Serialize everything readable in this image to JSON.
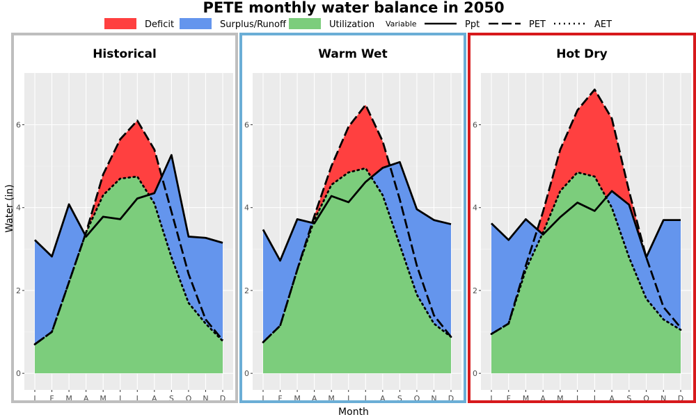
{
  "chart_data": {
    "type": "area",
    "title": "PETE monthly water balance in 2050",
    "xlabel": "Month",
    "ylabel": "Water (in)",
    "ylim": [
      -0.4,
      7.25
    ],
    "y_ticks": [
      0,
      2,
      4,
      6
    ],
    "categories": [
      "J",
      "F",
      "M",
      "A",
      "M",
      "J",
      "J",
      "A",
      "S",
      "O",
      "N",
      "D"
    ],
    "grid": true,
    "legend_position": "top",
    "legend": {
      "fill_items": [
        {
          "label": "Deficit",
          "color": "#FF4040"
        },
        {
          "label": "Surplus/Runoff",
          "color": "#6495ED"
        },
        {
          "label": "Utilization",
          "color": "#7CCD7C"
        }
      ],
      "line_title": "Variable",
      "line_items": [
        {
          "label": "Ppt",
          "dash": "solid"
        },
        {
          "label": "PET",
          "dash": "longdash"
        },
        {
          "label": "AET",
          "dash": "dotted"
        }
      ]
    },
    "panels": [
      {
        "name": "Historical",
        "border_color": "#BEBEBE",
        "series": [
          {
            "name": "Ppt",
            "values": [
              3.22,
              2.82,
              4.08,
              3.3,
              3.78,
              3.72,
              4.22,
              4.35,
              5.27,
              3.3,
              3.27,
              3.15
            ]
          },
          {
            "name": "PET",
            "values": [
              0.7,
              1.0,
              2.2,
              3.4,
              4.8,
              5.65,
              6.1,
              5.4,
              3.9,
              2.4,
              1.3,
              0.8
            ]
          },
          {
            "name": "AET",
            "values": [
              0.7,
              1.0,
              2.2,
              3.4,
              4.3,
              4.7,
              4.75,
              4.1,
              2.8,
              1.7,
              1.2,
              0.78
            ]
          }
        ]
      },
      {
        "name": "Warm Wet",
        "border_color": "#6BAED6",
        "series": [
          {
            "name": "Ppt",
            "values": [
              3.47,
              2.72,
              3.72,
              3.62,
              4.28,
              4.13,
              4.62,
              4.96,
              5.1,
              3.96,
              3.7,
              3.6
            ]
          },
          {
            "name": "PET",
            "values": [
              0.75,
              1.15,
              2.5,
              3.8,
              5.0,
              5.95,
              6.48,
              5.6,
              4.2,
              2.6,
              1.4,
              0.88
            ]
          },
          {
            "name": "AET",
            "values": [
              0.75,
              1.15,
              2.5,
              3.7,
              4.55,
              4.85,
              4.95,
              4.3,
              3.1,
              1.9,
              1.2,
              0.88
            ]
          }
        ]
      },
      {
        "name": "Hot Dry",
        "border_color": "#D7191C",
        "series": [
          {
            "name": "Ppt",
            "values": [
              3.62,
              3.22,
              3.72,
              3.35,
              3.77,
              4.12,
              3.92,
              4.4,
              4.07,
              2.8,
              3.7,
              3.7
            ]
          },
          {
            "name": "PET",
            "values": [
              0.95,
              1.2,
              2.6,
              3.9,
              5.4,
              6.35,
              6.85,
              6.15,
              4.4,
              2.8,
              1.6,
              1.1
            ]
          },
          {
            "name": "AET",
            "values": [
              0.95,
              1.2,
              2.5,
              3.4,
              4.4,
              4.85,
              4.75,
              4.0,
              2.8,
              1.8,
              1.3,
              1.05
            ]
          }
        ]
      }
    ]
  }
}
